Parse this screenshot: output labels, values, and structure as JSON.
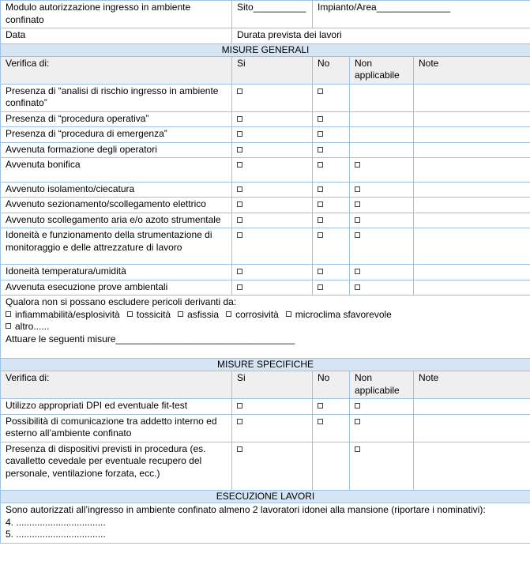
{
  "colors": {
    "border": "#9CC3E5",
    "section_fill": "#D5E5F4",
    "header_fill": "#EFEFEF",
    "checkbox_border": "#404040"
  },
  "header": {
    "title": "Modulo autorizzazione ingresso in ambiente confinato",
    "sito": "Sito__________",
    "impianto": "Impianto/Area______________",
    "data": "Data",
    "durata": "Durata prevista dei lavori"
  },
  "column_headers": {
    "verifica": "Verifica di:",
    "si": "Si",
    "no": "No",
    "non_applicabile": "Non applicabile",
    "note": "Note"
  },
  "misure_generali": {
    "title": "MISURE GENERALI",
    "rows": [
      {
        "label": "Presenza di “analisi di rischio ingresso in ambiente confinato”",
        "si": true,
        "no": true,
        "na": false,
        "note": "",
        "spacer": false
      },
      {
        "label": "Presenza di “procedura operativa”",
        "si": true,
        "no": true,
        "na": false,
        "note": "",
        "spacer": false
      },
      {
        "label": "Presenza di “procedura di emergenza”",
        "si": true,
        "no": true,
        "na": false,
        "note": "",
        "spacer": false
      },
      {
        "label": "Avvenuta formazione degli operatori",
        "si": true,
        "no": true,
        "na": false,
        "note": "",
        "spacer": false
      },
      {
        "label": "Avvenuta bonifica",
        "si": true,
        "no": true,
        "na": true,
        "note": "",
        "spacer": true
      },
      {
        "label": "Avvenuto isolamento/ciecatura",
        "si": true,
        "no": true,
        "na": true,
        "note": "",
        "spacer": false
      },
      {
        "label": "Avvenuto sezionamento/scollegamento elettrico",
        "si": true,
        "no": true,
        "na": true,
        "note": "",
        "spacer": false
      },
      {
        "label": "Avvenuto scollegamento aria e/o azoto strumentale",
        "si": true,
        "no": true,
        "na": true,
        "note": "",
        "spacer": false
      },
      {
        "label": "Idoneità e funzionamento della strumentazione di monitoraggio e delle attrezzature di lavoro",
        "si": true,
        "no": true,
        "na": true,
        "note": "",
        "spacer": true
      },
      {
        "label": "Idoneità temperatura/umidità",
        "si": true,
        "no": true,
        "na": true,
        "note": "",
        "spacer": false
      },
      {
        "label": "Avvenuta esecuzione prove ambientali",
        "si": true,
        "no": true,
        "na": true,
        "note": "",
        "spacer": false
      }
    ],
    "hazards_intro": "Qualora non si possano escludere pericoli derivanti da:",
    "hazards": [
      "infiammabilità/esplosività",
      "tossicità",
      "asfissia",
      "corrosività",
      "microclima sfavorevole"
    ],
    "hazard_other": "altro......",
    "attuare": "Attuare le seguenti misure__________________________________"
  },
  "misure_specifiche": {
    "title": "MISURE SPECIFICHE",
    "rows": [
      {
        "label": "Utilizzo appropriati DPI ed eventuale fit-test",
        "si": true,
        "no": true,
        "na": true,
        "note": "",
        "spacer": false
      },
      {
        "label": "Possibilità di comunicazione tra addetto interno ed esterno all’ambiente confinato",
        "si": true,
        "no": true,
        "na": true,
        "note": "",
        "spacer": false
      },
      {
        "label": "Presenza di dispositivi previsti in procedura (es. cavalletto cevedale per eventuale recupero del personale, ventilazione forzata, ecc.)",
        "si": true,
        "no": false,
        "na": true,
        "note": "",
        "spacer": true
      }
    ]
  },
  "esecuzione_lavori": {
    "title": "ESECUZIONE LAVORI",
    "intro": "Sono autorizzati all’ingresso in ambiente confinato almeno 2 lavoratori idonei alla mansione (riportare i nominativi):",
    "name_lines": [
      "4. ..................................",
      "5. .................................."
    ]
  }
}
